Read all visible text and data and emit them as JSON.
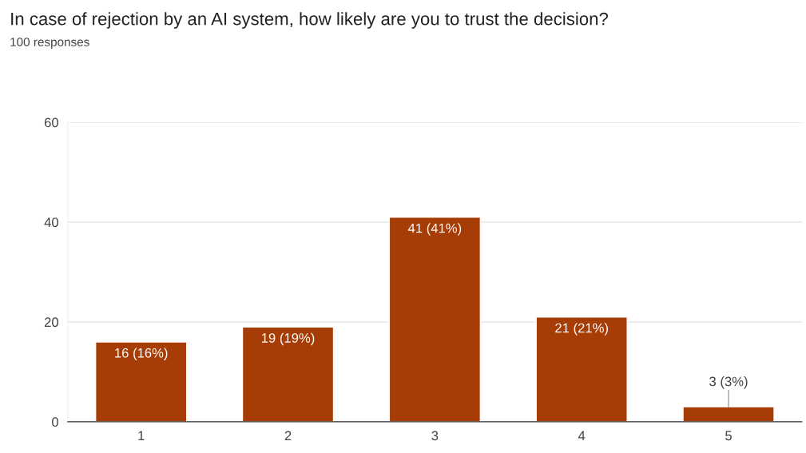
{
  "chart_data": {
    "type": "bar",
    "title": "In case of rejection by an AI system, how likely are you to trust the decision?",
    "subtitle": "100 responses",
    "categories": [
      "1",
      "2",
      "3",
      "4",
      "5"
    ],
    "values": [
      16,
      19,
      41,
      21,
      3
    ],
    "value_labels": [
      "16 (16%)",
      "19 (19%)",
      "41 (41%)",
      "21 (21%)",
      "3 (3%)"
    ],
    "color": "#a63c06",
    "ylim": [
      0,
      60
    ],
    "yticks": [
      0,
      20,
      40,
      60
    ],
    "grid": "y"
  }
}
